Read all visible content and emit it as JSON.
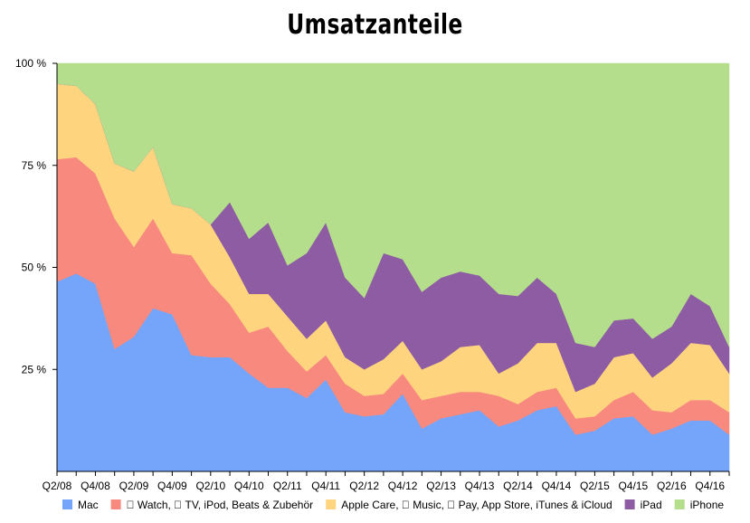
{
  "chart_data": {
    "type": "area",
    "stacked": true,
    "normalized": true,
    "title": "Umsatzanteile",
    "ylim": [
      0,
      100
    ],
    "y_ticks": [
      {
        "value": 25,
        "label": "25 %"
      },
      {
        "value": 50,
        "label": "50 %"
      },
      {
        "value": 75,
        "label": "75 %"
      },
      {
        "value": 100,
        "label": "100 %"
      }
    ],
    "x": [
      "Q2/08",
      "Q3/08",
      "Q4/08",
      "Q1/09",
      "Q2/09",
      "Q3/09",
      "Q4/09",
      "Q1/10",
      "Q2/10",
      "Q3/10",
      "Q4/10",
      "Q1/11",
      "Q2/11",
      "Q3/11",
      "Q4/11",
      "Q1/12",
      "Q2/12",
      "Q3/12",
      "Q4/12",
      "Q1/13",
      "Q2/13",
      "Q3/13",
      "Q4/13",
      "Q1/14",
      "Q2/14",
      "Q3/14",
      "Q4/14",
      "Q1/15",
      "Q2/15",
      "Q3/15",
      "Q4/15",
      "Q1/16",
      "Q2/16",
      "Q3/16",
      "Q4/16",
      "Q1/17"
    ],
    "x_tick_labels": [
      "Q2/08",
      "Q4/08",
      "Q2/09",
      "Q4/09",
      "Q2/10",
      "Q4/10",
      "Q2/11",
      "Q4/11",
      "Q2/12",
      "Q4/12",
      "Q2/13",
      "Q4/13",
      "Q2/14",
      "Q4/14",
      "Q2/15",
      "Q4/15",
      "Q2/16",
      "Q4/16"
    ],
    "legend_position": "bottom",
    "grid": false,
    "series": [
      {
        "name": "Mac",
        "color": "#75a5fa",
        "values": [
          46.5,
          48.5,
          46,
          30,
          33,
          40,
          38.5,
          28.5,
          28,
          28,
          24,
          20.5,
          20.5,
          18,
          22.5,
          14.5,
          13.5,
          14,
          19,
          10.5,
          13,
          14,
          15,
          11,
          12.5,
          15,
          16,
          9,
          10,
          13,
          13.5,
          9,
          10.5,
          12.5,
          12.5,
          9
        ]
      },
      {
        "name": " Watch,  TV, iPod, Beats & Zubehör",
        "color": "#f7897e",
        "values": [
          30,
          28.5,
          27,
          32,
          22,
          22,
          15,
          24.5,
          18,
          13,
          10,
          15,
          9,
          6.5,
          6,
          7,
          5,
          5,
          5,
          7,
          5.5,
          5.5,
          4.5,
          7.5,
          4,
          4.5,
          4.5,
          4,
          3.5,
          4.5,
          6,
          6,
          4,
          5,
          5,
          5.5
        ]
      },
      {
        "name": "Apple Care,  Music,  Pay, App Store, iTunes & iCloud",
        "color": "#ffd47f",
        "values": [
          18.5,
          17.5,
          17,
          13.5,
          18.5,
          17.5,
          12,
          11.5,
          14.5,
          11.5,
          9.5,
          8,
          8.5,
          8,
          8.5,
          6.5,
          6.5,
          8.5,
          8,
          7.5,
          8.5,
          11,
          11.5,
          5.5,
          10,
          12,
          11,
          6.5,
          8,
          10.5,
          9.5,
          8,
          12,
          14,
          13.5,
          9.5
        ]
      },
      {
        "name": "iPad",
        "color": "#8d5ca3",
        "values": [
          0,
          0,
          0,
          0,
          0,
          0,
          0,
          0,
          0,
          13.5,
          13.5,
          17.5,
          12.5,
          21,
          24,
          19.5,
          17.5,
          26,
          20,
          19,
          20.5,
          18.5,
          17,
          19.5,
          16.5,
          16,
          12,
          12,
          9,
          9,
          8.5,
          9.5,
          9,
          12,
          9.5,
          6.5
        ]
      },
      {
        "name": "iPhone",
        "color": "#b4dd8c",
        "values": [
          5,
          5.5,
          10,
          24.5,
          26.5,
          20.5,
          34.5,
          35.5,
          39.5,
          34,
          43,
          39,
          49.5,
          46.5,
          39,
          52.5,
          57.5,
          46.5,
          48,
          56,
          52.5,
          51,
          52,
          56.5,
          57,
          52.5,
          56.5,
          68.5,
          69.5,
          63,
          62.5,
          67.5,
          64.5,
          56.5,
          59.5,
          69.5
        ]
      }
    ]
  }
}
